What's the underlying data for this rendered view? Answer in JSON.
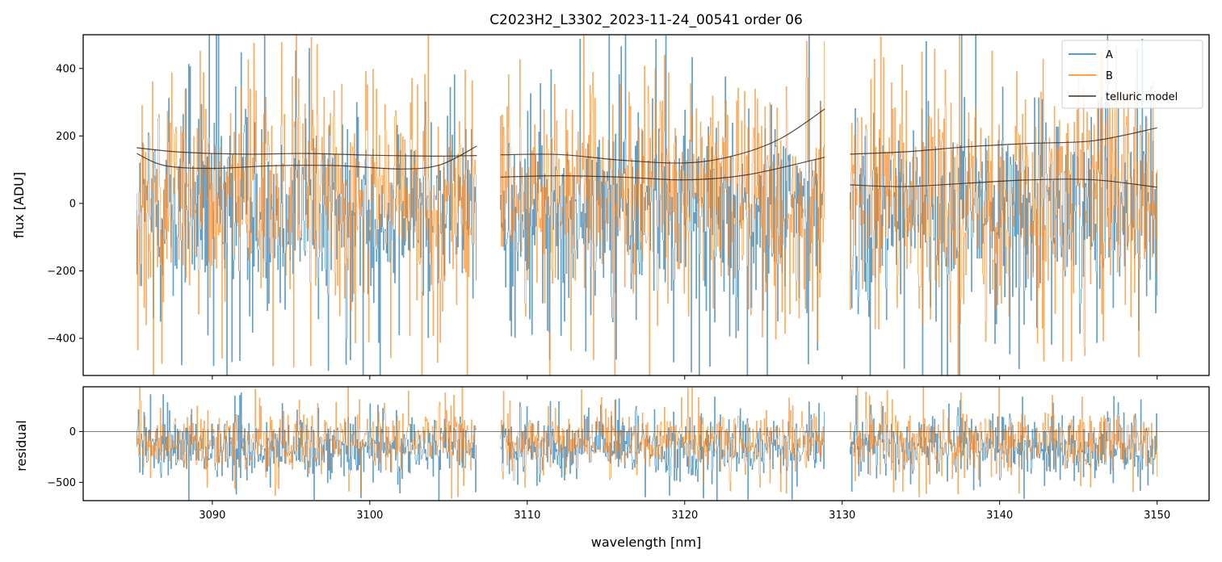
{
  "chart_data": {
    "type": "line",
    "title": "C2023H2_L3302_2023-11-24_00541  order 06",
    "xlabel": "wavelength [nm]",
    "xlim": [
      3081.8,
      3153.3
    ],
    "xticks": [
      3090,
      3100,
      3110,
      3120,
      3130,
      3140,
      3150
    ],
    "segments": [
      {
        "start": 3085.2,
        "end": 3106.8
      },
      {
        "start": 3108.3,
        "end": 3128.9
      },
      {
        "start": 3130.5,
        "end": 3150.0
      }
    ],
    "colors": {
      "A": "#1f77b4",
      "B": "#ff7f0e",
      "model": "#3b2a20",
      "zero_line": "#555555"
    },
    "legend": {
      "location": "upper right",
      "entries": [
        {
          "label": "A",
          "key": "A"
        },
        {
          "label": "B",
          "key": "B"
        },
        {
          "label": "telluric model",
          "key": "model"
        }
      ]
    },
    "panels": [
      {
        "name": "flux",
        "ylabel": "flux [ADU]",
        "ylim": [
          -510,
          500
        ],
        "yticks": [
          -400,
          -200,
          0,
          200,
          400
        ],
        "ytick_labels": [
          "−400",
          "−200",
          "0",
          "200",
          "400"
        ],
        "series": [
          {
            "name": "A",
            "mean": -20,
            "spread": 140,
            "spike_low": -520,
            "spike_high": 500
          },
          {
            "name": "B",
            "mean": 30,
            "spread": 160,
            "spike_low": -480,
            "spike_high": 520
          }
        ],
        "model_curves": [
          {
            "name": "model B seg1",
            "x": [
              3085.2,
              3088,
              3092,
              3096,
              3100,
              3104,
              3106.8
            ],
            "y": [
              165,
              152,
              146,
              148,
              143,
              140,
              142
            ]
          },
          {
            "name": "model A seg1",
            "x": [
              3085.2,
              3087,
              3090,
              3094,
              3098,
              3102,
              3104.5,
              3106.8
            ],
            "y": [
              148,
              112,
              104,
              112,
              112,
              102,
              115,
              170
            ]
          },
          {
            "name": "model B seg2",
            "x": [
              3108.3,
              3112,
              3116,
              3120,
              3123,
              3126,
              3128.9
            ],
            "y": [
              144,
              145,
              128,
              120,
              140,
              190,
              280
            ]
          },
          {
            "name": "model A seg2",
            "x": [
              3108.3,
              3112,
              3116,
              3120,
              3124,
              3128.9
            ],
            "y": [
              78,
              82,
              78,
              70,
              85,
              137
            ]
          },
          {
            "name": "model B seg3",
            "x": [
              3130.5,
              3134,
              3138,
              3142,
              3146,
              3150
            ],
            "y": [
              146,
              153,
              168,
              178,
              186,
              224
            ]
          },
          {
            "name": "model A seg3",
            "x": [
              3130.5,
              3134,
              3138,
              3142,
              3146,
              3150
            ],
            "y": [
              55,
              50,
              60,
              70,
              70,
              48
            ]
          }
        ]
      },
      {
        "name": "residual",
        "ylabel": "residual",
        "ylim": [
          -680,
          440
        ],
        "yticks": [
          -500,
          0
        ],
        "ytick_labels": [
          "−500",
          "0"
        ],
        "zero_line": 0,
        "series": [
          {
            "name": "A",
            "mean": -150,
            "spread": 150,
            "spike_low": -650,
            "spike_high": 350
          },
          {
            "name": "B",
            "mean": -80,
            "spread": 140,
            "spike_low": -620,
            "spike_high": 450
          }
        ]
      }
    ]
  }
}
